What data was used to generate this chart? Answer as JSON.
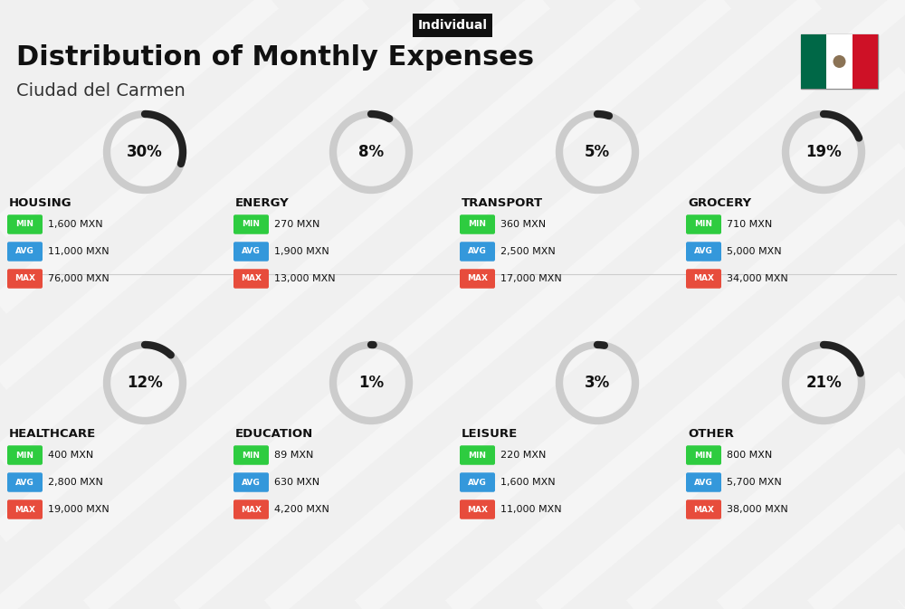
{
  "title": "Distribution of Monthly Expenses",
  "subtitle": "Ciudad del Carmen",
  "tag": "Individual",
  "bg_color": "#f0f0f0",
  "categories": [
    {
      "name": "HOUSING",
      "pct": 30,
      "min_val": "1,600 MXN",
      "avg_val": "11,000 MXN",
      "max_val": "76,000 MXN",
      "row": 0,
      "col": 0
    },
    {
      "name": "ENERGY",
      "pct": 8,
      "min_val": "270 MXN",
      "avg_val": "1,900 MXN",
      "max_val": "13,000 MXN",
      "row": 0,
      "col": 1
    },
    {
      "name": "TRANSPORT",
      "pct": 5,
      "min_val": "360 MXN",
      "avg_val": "2,500 MXN",
      "max_val": "17,000 MXN",
      "row": 0,
      "col": 2
    },
    {
      "name": "GROCERY",
      "pct": 19,
      "min_val": "710 MXN",
      "avg_val": "5,000 MXN",
      "max_val": "34,000 MXN",
      "row": 0,
      "col": 3
    },
    {
      "name": "HEALTHCARE",
      "pct": 12,
      "min_val": "400 MXN",
      "avg_val": "2,800 MXN",
      "max_val": "19,000 MXN",
      "row": 1,
      "col": 0
    },
    {
      "name": "EDUCATION",
      "pct": 1,
      "min_val": "89 MXN",
      "avg_val": "630 MXN",
      "max_val": "4,200 MXN",
      "row": 1,
      "col": 1
    },
    {
      "name": "LEISURE",
      "pct": 3,
      "min_val": "220 MXN",
      "avg_val": "1,600 MXN",
      "max_val": "11,000 MXN",
      "row": 1,
      "col": 2
    },
    {
      "name": "OTHER",
      "pct": 21,
      "min_val": "800 MXN",
      "avg_val": "5,700 MXN",
      "max_val": "38,000 MXN",
      "row": 1,
      "col": 3
    }
  ],
  "min_color": "#2ecc40",
  "avg_color": "#3498db",
  "max_color": "#e74c3c",
  "arc_color": "#222222",
  "arc_bg_color": "#cccccc",
  "label_color": "#111111",
  "tag_bg": "#111111",
  "tag_fg": "#ffffff"
}
